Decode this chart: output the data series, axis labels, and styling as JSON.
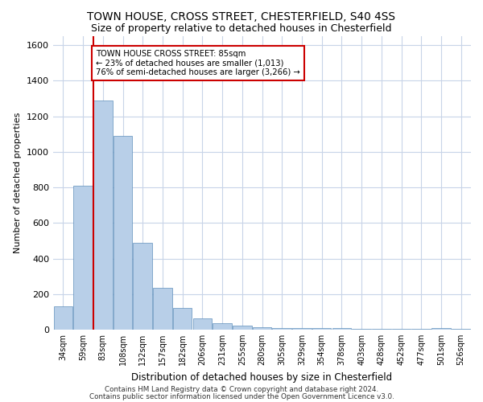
{
  "title1": "TOWN HOUSE, CROSS STREET, CHESTERFIELD, S40 4SS",
  "title2": "Size of property relative to detached houses in Chesterfield",
  "xlabel": "Distribution of detached houses by size in Chesterfield",
  "ylabel": "Number of detached properties",
  "categories": [
    "34sqm",
    "59sqm",
    "83sqm",
    "108sqm",
    "132sqm",
    "157sqm",
    "182sqm",
    "206sqm",
    "231sqm",
    "255sqm",
    "280sqm",
    "305sqm",
    "329sqm",
    "354sqm",
    "378sqm",
    "403sqm",
    "428sqm",
    "452sqm",
    "477sqm",
    "501sqm",
    "526sqm"
  ],
  "values": [
    130,
    810,
    1290,
    1090,
    490,
    235,
    120,
    65,
    38,
    22,
    12,
    10,
    10,
    10,
    8,
    5,
    5,
    4,
    4,
    10,
    5
  ],
  "bar_color": "#b8cfe8",
  "bar_edge_color": "#6090bb",
  "vline_index": 2,
  "vline_color": "#cc0000",
  "annotation_text": "TOWN HOUSE CROSS STREET: 85sqm\n← 23% of detached houses are smaller (1,013)\n76% of semi-detached houses are larger (3,266) →",
  "annotation_box_edgecolor": "#cc0000",
  "ylim": [
    0,
    1650
  ],
  "yticks": [
    0,
    200,
    400,
    600,
    800,
    1000,
    1200,
    1400,
    1600
  ],
  "footer1": "Contains HM Land Registry data © Crown copyright and database right 2024.",
  "footer2": "Contains public sector information licensed under the Open Government Licence v3.0.",
  "bg_color": "#ffffff",
  "grid_color": "#c8d4e8"
}
